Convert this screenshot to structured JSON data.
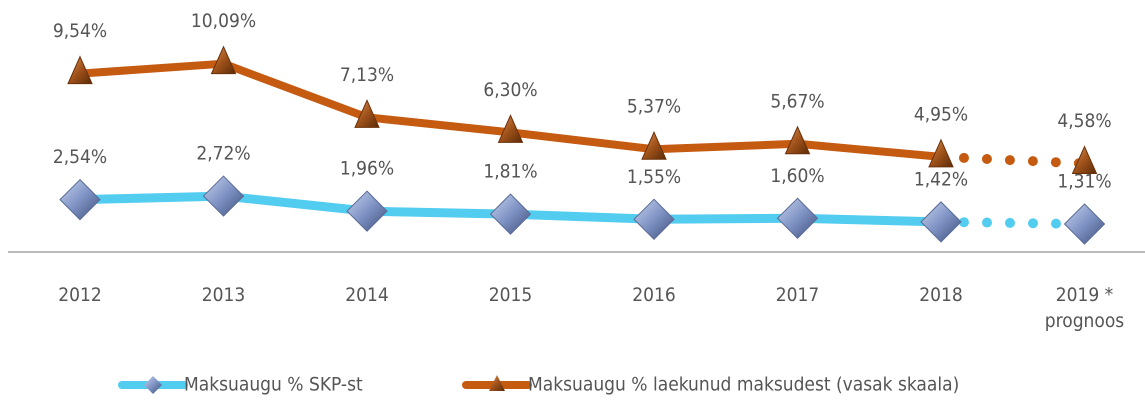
{
  "chart_data": {
    "type": "line",
    "categories": [
      "2012",
      "2013",
      "2014",
      "2015",
      "2016",
      "2017",
      "2018",
      "2019 *\nprognoos"
    ],
    "series": [
      {
        "name": "Maksuaugu % SKP-st",
        "color": "#52cdf0",
        "axis": "y2",
        "marker": "diamond",
        "values": [
          2.54,
          2.72,
          1.96,
          1.81,
          1.55,
          1.6,
          1.42,
          1.31
        ],
        "value_labels": [
          "2,54%",
          "2,72%",
          "1,96%",
          "1,81%",
          "1,55%",
          "1,60%",
          "1,42%",
          "1,31%"
        ]
      },
      {
        "name": "Maksuaugu % laekunud maksudest (vasak skaala)",
        "color": "#c55a11",
        "axis": "y",
        "marker": "triangle",
        "values": [
          9.54,
          10.09,
          7.13,
          6.3,
          5.37,
          5.67,
          4.95,
          4.58
        ],
        "value_labels": [
          "9,54%",
          "10,09%",
          "7,13%",
          "6,30%",
          "5,37%",
          "5,67%",
          "4,95%",
          "4,58%"
        ]
      }
    ],
    "ylim": [
      -0.3,
      12.5
    ],
    "y2lim": [
      -0.1,
      11.6
    ],
    "legend": "bottom"
  }
}
